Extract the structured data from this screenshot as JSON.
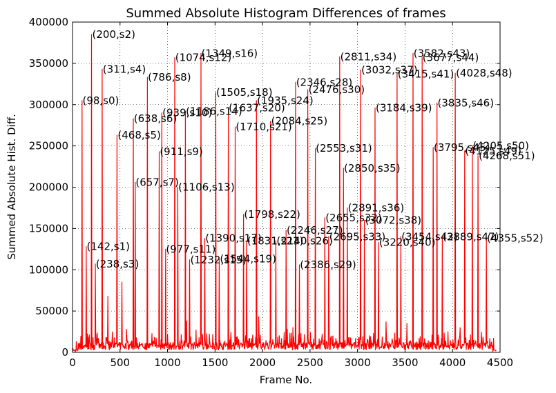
{
  "chart_data": {
    "type": "line",
    "title": "Summed Absolute Histogram Differences of frames",
    "xlabel": "Frame No.",
    "ylabel": "Summed Absolute Hist. Diff.",
    "xlim": [
      0,
      4500
    ],
    "ylim": [
      0,
      400000
    ],
    "xticks": [
      "0",
      "500",
      "1000",
      "1500",
      "2000",
      "2500",
      "3000",
      "3500",
      "4000",
      "4500"
    ],
    "yticks": [
      "0",
      "50000",
      "100000",
      "150000",
      "200000",
      "250000",
      "300000",
      "350000",
      "400000"
    ],
    "grid": true,
    "line_color": "#ff0000",
    "series": [
      {
        "peaks": [
          {
            "label": "(98,s0)",
            "x": 98,
            "y": 305000
          },
          {
            "label": "(142,s1)",
            "x": 142,
            "y": 128000
          },
          {
            "label": "(200,s2)",
            "x": 200,
            "y": 385000
          },
          {
            "label": "(238,s3)",
            "x": 238,
            "y": 107000
          },
          {
            "label": "(311,s4)",
            "x": 311,
            "y": 343000
          },
          {
            "label": "(468,s5)",
            "x": 468,
            "y": 263000
          },
          {
            "label": "(638,s6)",
            "x": 638,
            "y": 283000
          },
          {
            "label": "(657,s7)",
            "x": 657,
            "y": 206000
          },
          {
            "label": "(786,s8)",
            "x": 786,
            "y": 333000
          },
          {
            "label": "(911,s9)",
            "x": 911,
            "y": 243000
          },
          {
            "label": "(939,s10)",
            "x": 939,
            "y": 290000
          },
          {
            "label": "(977,s11)",
            "x": 977,
            "y": 125000
          },
          {
            "label": "(1074,s12)",
            "x": 1074,
            "y": 357000
          },
          {
            "label": "(1106,s13)",
            "x": 1106,
            "y": 200000
          },
          {
            "label": "(1186,s14)",
            "x": 1186,
            "y": 292000
          },
          {
            "label": "(1232,s15)",
            "x": 1232,
            "y": 112000
          },
          {
            "label": "(1349,s16)",
            "x": 1349,
            "y": 362000
          },
          {
            "label": "(1390,s17)",
            "x": 1390,
            "y": 138000
          },
          {
            "label": "(1505,s18)",
            "x": 1505,
            "y": 315000
          },
          {
            "label": "(1544,s19)",
            "x": 1544,
            "y": 113000
          },
          {
            "label": "(1637,s20)",
            "x": 1637,
            "y": 296000
          },
          {
            "label": "(1710,s21)",
            "x": 1710,
            "y": 273000
          },
          {
            "label": "(1798,s22)",
            "x": 1798,
            "y": 167000
          },
          {
            "label": "(1831,s23)",
            "x": 1831,
            "y": 135000
          },
          {
            "label": "(1935,s24)",
            "x": 1935,
            "y": 305000
          },
          {
            "label": "(2084,s25)",
            "x": 2084,
            "y": 280000
          },
          {
            "label": "(2140,s26)",
            "x": 2140,
            "y": 135000
          },
          {
            "label": "(2246,s27)",
            "x": 2246,
            "y": 148000
          },
          {
            "label": "(2346,s28)",
            "x": 2346,
            "y": 327000
          },
          {
            "label": "(2386,s29)",
            "x": 2386,
            "y": 106000
          },
          {
            "label": "(2476,s30)",
            "x": 2476,
            "y": 318000
          },
          {
            "label": "(2553,s31)",
            "x": 2553,
            "y": 247000
          },
          {
            "label": "(2655,s32)",
            "x": 2655,
            "y": 163000
          },
          {
            "label": "(2695,s33)",
            "x": 2695,
            "y": 140000
          },
          {
            "label": "(2811,s34)",
            "x": 2811,
            "y": 358000
          },
          {
            "label": "(2850,s35)",
            "x": 2850,
            "y": 223000
          },
          {
            "label": "(2891,s36)",
            "x": 2891,
            "y": 175000
          },
          {
            "label": "(3032,s37)",
            "x": 3032,
            "y": 342000
          },
          {
            "label": "(3072,s38)",
            "x": 3072,
            "y": 160000
          },
          {
            "label": "(3184,s39)",
            "x": 3184,
            "y": 296000
          },
          {
            "label": "(3220,s40)",
            "x": 3220,
            "y": 133000
          },
          {
            "label": "(3415,s41)",
            "x": 3415,
            "y": 337000
          },
          {
            "label": "(3454,s42)",
            "x": 3454,
            "y": 140000
          },
          {
            "label": "(3582,s43)",
            "x": 3582,
            "y": 362000
          },
          {
            "label": "(3677,s44)",
            "x": 3677,
            "y": 357000
          },
          {
            "label": "(3795,s45)",
            "x": 3795,
            "y": 248000
          },
          {
            "label": "(3835,s46)",
            "x": 3835,
            "y": 302000
          },
          {
            "label": "(3889,s47)",
            "x": 3889,
            "y": 140000
          },
          {
            "label": "(4028,s48)",
            "x": 4028,
            "y": 338000
          },
          {
            "label": "(4125,s49)",
            "x": 4125,
            "y": 244000
          },
          {
            "label": "(4205,s50)",
            "x": 4205,
            "y": 250000
          },
          {
            "label": "(4268,s51)",
            "x": 4268,
            "y": 238000
          },
          {
            "label": "(4355,s52)",
            "x": 4355,
            "y": 138000
          }
        ],
        "minor_spikes": [
          {
            "x": 40,
            "y": 13000
          },
          {
            "x": 370,
            "y": 68000
          },
          {
            "x": 520,
            "y": 85000
          },
          {
            "x": 565,
            "y": 28000
          },
          {
            "x": 1200,
            "y": 38000
          },
          {
            "x": 1300,
            "y": 27000
          },
          {
            "x": 1960,
            "y": 43000
          },
          {
            "x": 2260,
            "y": 28000
          },
          {
            "x": 2320,
            "y": 30000
          },
          {
            "x": 2700,
            "y": 40000
          },
          {
            "x": 3300,
            "y": 37000
          },
          {
            "x": 3520,
            "y": 35000
          },
          {
            "x": 3950,
            "y": 25000
          },
          {
            "x": 4080,
            "y": 30000
          },
          {
            "x": 4430,
            "y": 17000
          }
        ]
      }
    ]
  }
}
